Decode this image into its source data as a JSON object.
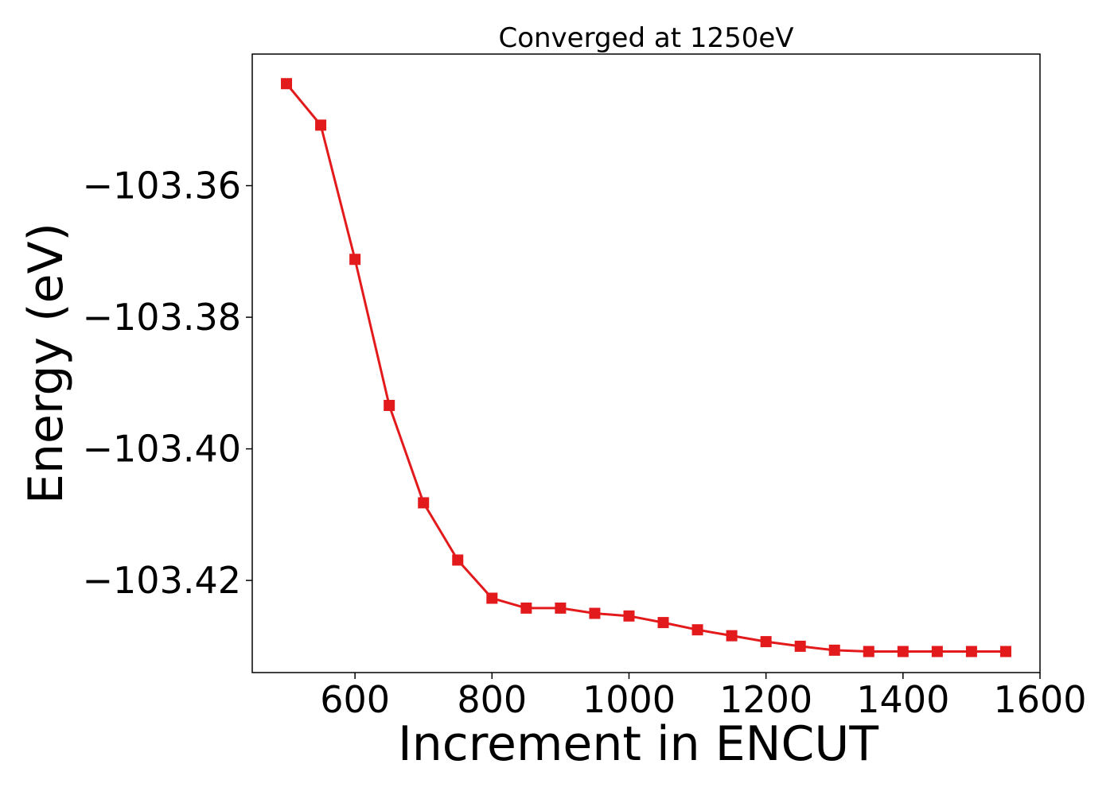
{
  "chart_data": {
    "type": "line",
    "title": "Converged at 1250eV",
    "xlabel": "Increment in ENCUT",
    "ylabel": "Energy (eV)",
    "x": [
      500,
      550,
      600,
      650,
      700,
      750,
      800,
      850,
      900,
      950,
      1000,
      1050,
      1100,
      1150,
      1200,
      1250,
      1300,
      1350,
      1400,
      1450,
      1500,
      1550
    ],
    "series": [
      {
        "values": [
          -103.3445,
          -103.3508,
          -103.3712,
          -103.3934,
          -103.4082,
          -103.4169,
          -103.4227,
          -103.4242,
          -103.4242,
          -103.425,
          -103.4254,
          -103.4264,
          -103.4275,
          -103.4284,
          -103.4293,
          -103.43,
          -103.4306,
          -103.4308,
          -103.4308,
          -103.4308,
          -103.4308,
          -103.4308
        ],
        "color": "#e31a1c",
        "marker": "square"
      }
    ],
    "xlim": [
      450,
      1600
    ],
    "ylim": [
      -103.434,
      -103.34
    ],
    "xticks": [
      600,
      800,
      1000,
      1200,
      1400,
      1600
    ],
    "xtick_labels": [
      "600",
      "800",
      "1000",
      "1200",
      "1400",
      "1600"
    ],
    "yticks": [
      -103.36,
      -103.38,
      -103.4,
      -103.42
    ],
    "ytick_labels": [
      "−103.36",
      "−103.38",
      "−103.40",
      "−103.42"
    ],
    "grid": false,
    "legend": "none"
  }
}
